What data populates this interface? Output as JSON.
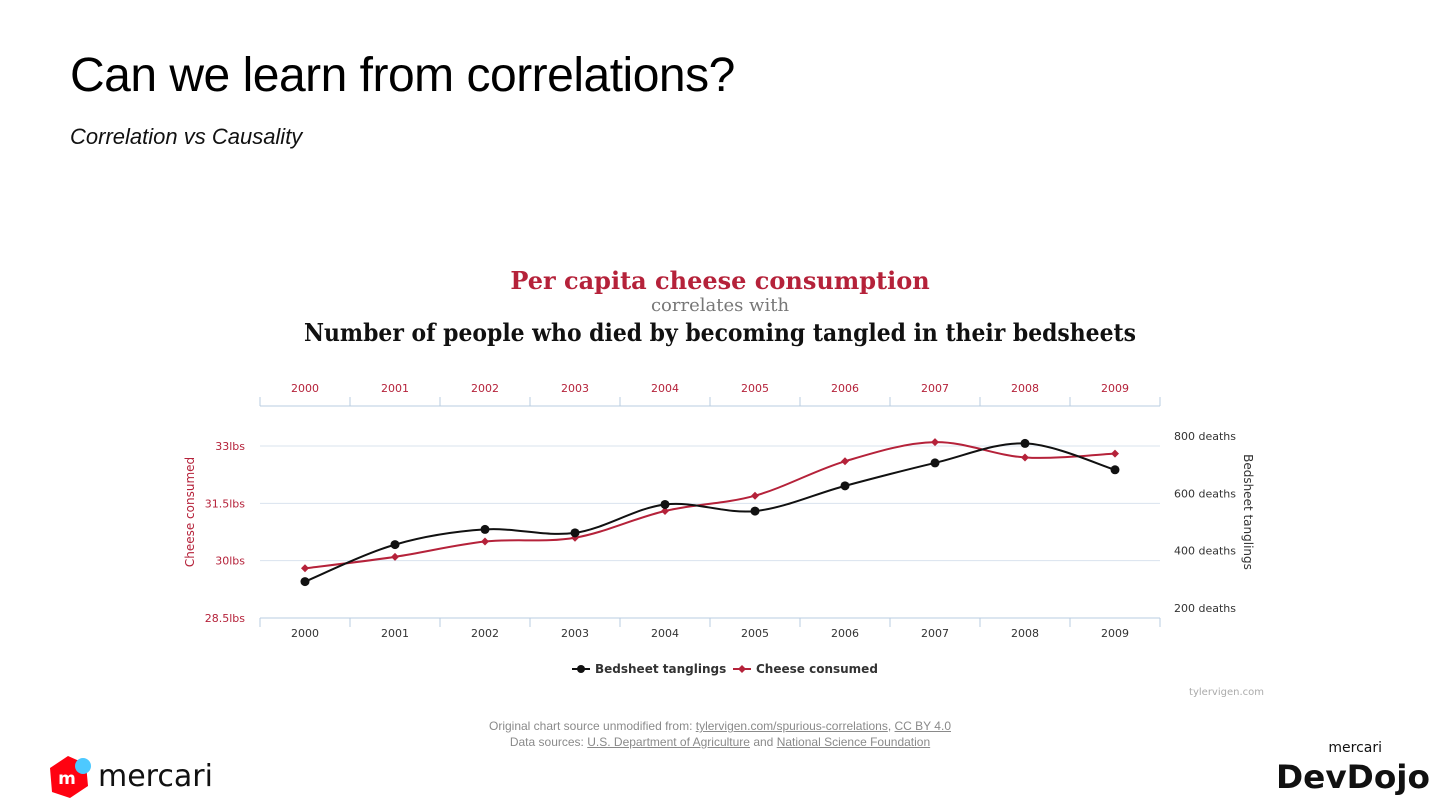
{
  "slide": {
    "title": "Can we learn from correlations?",
    "subtitle": "Correlation vs Causality"
  },
  "chart_data": {
    "type": "line",
    "title": "Per capita cheese consumption",
    "connector": "correlates with",
    "subtitle": "Number of people who died by becoming tangled in their bedsheets",
    "categories": [
      "2000",
      "2001",
      "2002",
      "2003",
      "2004",
      "2005",
      "2006",
      "2007",
      "2008",
      "2009"
    ],
    "left_axis": {
      "label": "Cheese consumed",
      "ticks": [
        "28.5lbs",
        "30lbs",
        "31.5lbs",
        "33lbs"
      ],
      "range": [
        28.5,
        33
      ],
      "color": "#b5223a"
    },
    "right_axis": {
      "label": "Bedsheet tanglings",
      "ticks": [
        "200 deaths",
        "400 deaths",
        "600 deaths",
        "800 deaths"
      ],
      "range": [
        200,
        800
      ],
      "color": "#333333"
    },
    "series": [
      {
        "name": "Bedsheet tanglings",
        "axis": "right",
        "color": "#111111",
        "marker": "circle",
        "values": [
          327,
          456,
          509,
          497,
          596,
          573,
          661,
          741,
          809,
          717
        ]
      },
      {
        "name": "Cheese consumed",
        "axis": "left",
        "color": "#b5223a",
        "marker": "diamond",
        "values": [
          29.8,
          30.1,
          30.5,
          30.6,
          31.3,
          31.7,
          32.6,
          33.1,
          32.7,
          32.8
        ]
      }
    ],
    "grid": true,
    "legend": "bottom",
    "watermark": "tylervigen.com"
  },
  "credits": {
    "line1_prefix": "Original chart source unmodified from:",
    "source_link": "tylervigen.com/spurious-correlations",
    "separator": ",",
    "license_link": "CC BY 4.0",
    "line2_prefix": "Data sources:",
    "usda_link": "U.S. Department of Agriculture",
    "and": "and",
    "nsf_link": "National Science Foundation"
  },
  "logos": {
    "left_text": "mercari",
    "left_mark": "m",
    "right_top": "mercari",
    "right_main": "DevDojo"
  },
  "colors": {
    "cheese_red": "#b5223a",
    "line_black": "#111111",
    "grid": "#d9e3ee",
    "mercari_red": "#ff0211",
    "mercari_blue": "#4dc9ff"
  }
}
